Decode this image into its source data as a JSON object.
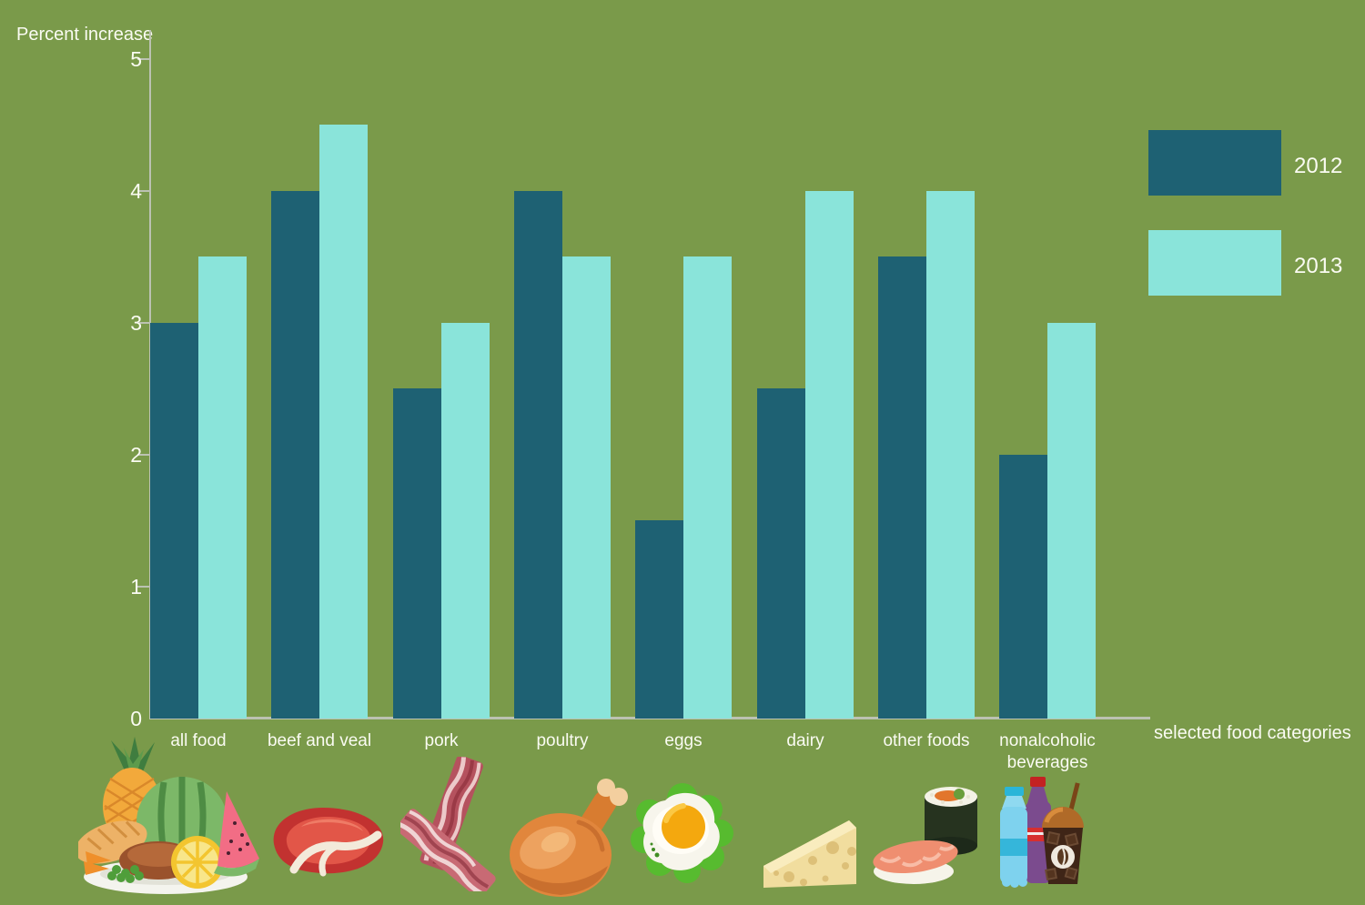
{
  "colors": {
    "background": "#7a9a4a",
    "bar_2012": "#1e6173",
    "bar_2013": "#8ae4da",
    "axis": "#bcc2b2",
    "text": "#fafbf2"
  },
  "chart_data": {
    "type": "bar",
    "title": "",
    "ylabel": "Percent increase",
    "xlabel": "selected food categories",
    "categories": [
      "all food",
      "beef and veal",
      "pork",
      "poultry",
      "eggs",
      "dairy",
      "other foods",
      "nonalcoholic beverages"
    ],
    "category_icons": [
      "fruit-plate-icon",
      "steak-icon",
      "bacon-icon",
      "roast-chicken-icon",
      "fried-egg-icon",
      "cheese-icon",
      "sushi-icon",
      "beverages-icon"
    ],
    "series": [
      {
        "name": "2012",
        "color": "#1e6173",
        "values": [
          3,
          4,
          2.5,
          4,
          1.5,
          2.5,
          3.5,
          2
        ]
      },
      {
        "name": "2013",
        "color": "#8ae4da",
        "values": [
          3.5,
          4.5,
          3,
          3.5,
          3.5,
          4,
          4,
          3
        ]
      }
    ],
    "ylim": [
      0,
      5
    ],
    "yticks": [
      0,
      1,
      2,
      3,
      4,
      5
    ],
    "grid": false,
    "legend_position": "right"
  },
  "legend": {
    "items": [
      {
        "label": "2012",
        "color": "#1e6173"
      },
      {
        "label": "2013",
        "color": "#8ae4da"
      }
    ]
  }
}
